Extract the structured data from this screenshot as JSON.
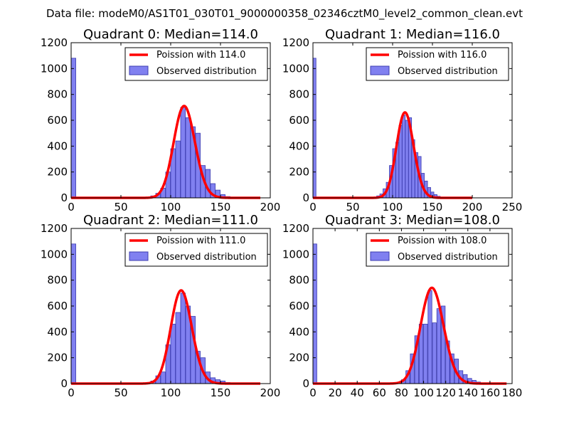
{
  "figure": {
    "title": "Data file: modeM0/AS1T01_030T01_9000000358_02346cztM0_level2_common_clean.evt"
  },
  "legend_labels": {
    "observed": "Observed distribution"
  },
  "colors": {
    "bar_fill": "#8080f0",
    "bar_edge": "#3c3cb0",
    "poisson_line": "#ff0000",
    "axes": "#000000"
  },
  "chart_data": [
    {
      "type": "bar",
      "title": "Quadrant 0: Median=114.0",
      "legend_line_label": "Poission with 114.0",
      "legend": "top-right",
      "xlim": [
        0,
        200
      ],
      "ylim": [
        0,
        1200
      ],
      "xticks": [
        0,
        50,
        100,
        150,
        200
      ],
      "yticks": [
        0,
        200,
        400,
        600,
        800,
        1000,
        1200
      ],
      "bin_width": 4.7,
      "bars": [
        {
          "x": 0,
          "y": 1080
        },
        {
          "x": 70,
          "y": 3
        },
        {
          "x": 75,
          "y": 6
        },
        {
          "x": 80,
          "y": 15
        },
        {
          "x": 85,
          "y": 35
        },
        {
          "x": 90,
          "y": 75
        },
        {
          "x": 95,
          "y": 200
        },
        {
          "x": 100,
          "y": 380
        },
        {
          "x": 105,
          "y": 440
        },
        {
          "x": 110,
          "y": 700
        },
        {
          "x": 115,
          "y": 620
        },
        {
          "x": 120,
          "y": 550
        },
        {
          "x": 125,
          "y": 500
        },
        {
          "x": 130,
          "y": 250
        },
        {
          "x": 135,
          "y": 220
        },
        {
          "x": 140,
          "y": 110
        },
        {
          "x": 145,
          "y": 60
        },
        {
          "x": 150,
          "y": 25
        },
        {
          "x": 155,
          "y": 10
        },
        {
          "x": 160,
          "y": 4
        },
        {
          "x": 165,
          "y": 2
        }
      ],
      "poisson": {
        "lambda": 114.0,
        "peak": 710,
        "x_range": [
          0,
          190
        ]
      }
    },
    {
      "type": "bar",
      "title": "Quadrant 1: Median=116.0",
      "legend_line_label": "Poission with 116.0",
      "legend": "top-right",
      "xlim": [
        0,
        250
      ],
      "ylim": [
        0,
        1200
      ],
      "xticks": [
        0,
        50,
        100,
        150,
        200,
        250
      ],
      "yticks": [
        0,
        200,
        400,
        600,
        800,
        1000,
        1200
      ],
      "bin_width": 3.8,
      "bars": [
        {
          "x": 0,
          "y": 1080
        },
        {
          "x": 76,
          "y": 5
        },
        {
          "x": 80,
          "y": 15
        },
        {
          "x": 84,
          "y": 30
        },
        {
          "x": 88,
          "y": 70
        },
        {
          "x": 92,
          "y": 120
        },
        {
          "x": 96,
          "y": 250
        },
        {
          "x": 100,
          "y": 380
        },
        {
          "x": 104,
          "y": 430
        },
        {
          "x": 108,
          "y": 560
        },
        {
          "x": 112,
          "y": 640
        },
        {
          "x": 116,
          "y": 600
        },
        {
          "x": 120,
          "y": 620
        },
        {
          "x": 124,
          "y": 450
        },
        {
          "x": 128,
          "y": 350
        },
        {
          "x": 132,
          "y": 320
        },
        {
          "x": 136,
          "y": 190
        },
        {
          "x": 140,
          "y": 130
        },
        {
          "x": 144,
          "y": 80
        },
        {
          "x": 148,
          "y": 45
        },
        {
          "x": 152,
          "y": 25
        },
        {
          "x": 156,
          "y": 12
        },
        {
          "x": 160,
          "y": 5
        },
        {
          "x": 164,
          "y": 2
        }
      ],
      "poisson": {
        "lambda": 116.0,
        "peak": 660,
        "x_range": [
          0,
          200
        ]
      }
    },
    {
      "type": "bar",
      "title": "Quadrant 2: Median=111.0",
      "legend_line_label": "Poission with 111.0",
      "legend": "top-right",
      "xlim": [
        0,
        200
      ],
      "ylim": [
        0,
        1200
      ],
      "xticks": [
        0,
        50,
        100,
        150,
        200
      ],
      "yticks": [
        0,
        200,
        400,
        600,
        800,
        1000,
        1200
      ],
      "bin_width": 4.7,
      "bars": [
        {
          "x": 0,
          "y": 1080
        },
        {
          "x": 70,
          "y": 3
        },
        {
          "x": 75,
          "y": 8
        },
        {
          "x": 80,
          "y": 20
        },
        {
          "x": 85,
          "y": 60
        },
        {
          "x": 90,
          "y": 90
        },
        {
          "x": 95,
          "y": 300
        },
        {
          "x": 100,
          "y": 460
        },
        {
          "x": 105,
          "y": 550
        },
        {
          "x": 110,
          "y": 700
        },
        {
          "x": 115,
          "y": 600
        },
        {
          "x": 120,
          "y": 520
        },
        {
          "x": 125,
          "y": 250
        },
        {
          "x": 130,
          "y": 200
        },
        {
          "x": 135,
          "y": 90
        },
        {
          "x": 140,
          "y": 45
        },
        {
          "x": 145,
          "y": 30
        },
        {
          "x": 150,
          "y": 20
        },
        {
          "x": 155,
          "y": 8
        },
        {
          "x": 160,
          "y": 3
        },
        {
          "x": 165,
          "y": 1
        }
      ],
      "poisson": {
        "lambda": 111.0,
        "peak": 720,
        "x_range": [
          0,
          190
        ]
      }
    },
    {
      "type": "bar",
      "title": "Quadrant 3: Median=108.0",
      "legend_line_label": "Poission with 108.0",
      "legend": "top-right",
      "xlim": [
        0,
        180
      ],
      "ylim": [
        0,
        1200
      ],
      "xticks": [
        0,
        20,
        40,
        60,
        80,
        100,
        120,
        140,
        160,
        180
      ],
      "yticks": [
        0,
        200,
        400,
        600,
        800,
        1000,
        1200
      ],
      "bin_width": 3.5,
      "bars": [
        {
          "x": 0,
          "y": 1080
        },
        {
          "x": 72,
          "y": 4
        },
        {
          "x": 76,
          "y": 10
        },
        {
          "x": 80,
          "y": 30
        },
        {
          "x": 84,
          "y": 100
        },
        {
          "x": 88,
          "y": 230
        },
        {
          "x": 92,
          "y": 370
        },
        {
          "x": 96,
          "y": 460
        },
        {
          "x": 100,
          "y": 460
        },
        {
          "x": 104,
          "y": 720
        },
        {
          "x": 108,
          "y": 470
        },
        {
          "x": 112,
          "y": 580
        },
        {
          "x": 116,
          "y": 600
        },
        {
          "x": 120,
          "y": 330
        },
        {
          "x": 124,
          "y": 230
        },
        {
          "x": 128,
          "y": 190
        },
        {
          "x": 132,
          "y": 100
        },
        {
          "x": 136,
          "y": 70
        },
        {
          "x": 140,
          "y": 40
        },
        {
          "x": 144,
          "y": 25
        },
        {
          "x": 148,
          "y": 12
        },
        {
          "x": 152,
          "y": 6
        },
        {
          "x": 156,
          "y": 3
        }
      ],
      "poisson": {
        "lambda": 108.0,
        "peak": 740,
        "x_range": [
          0,
          175
        ]
      }
    }
  ]
}
